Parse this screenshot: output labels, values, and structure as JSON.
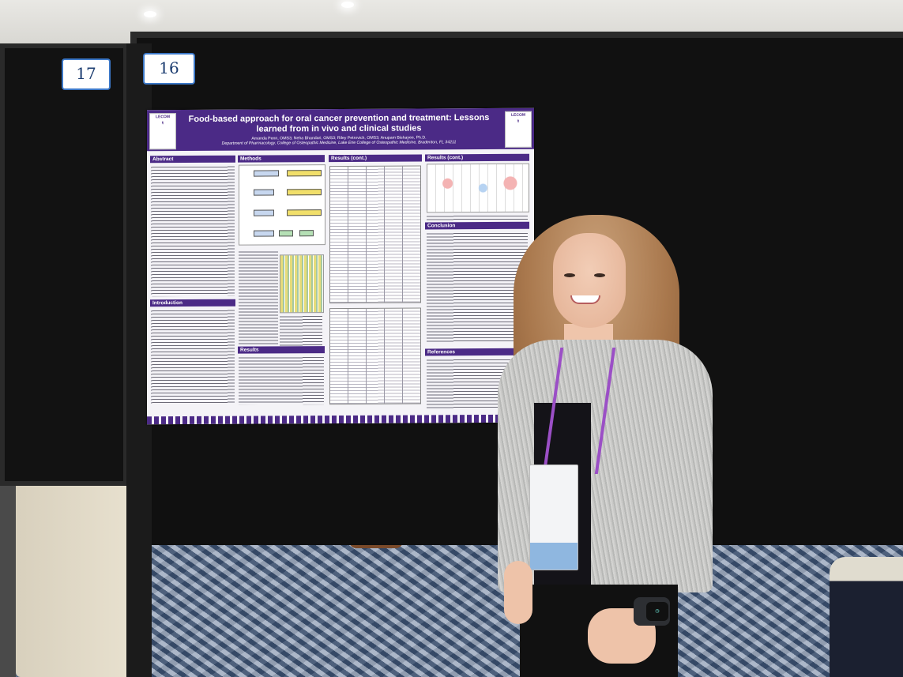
{
  "scene": {
    "description_tags": [
      "poster-session",
      "presenter",
      "conference-hall"
    ]
  },
  "booth_numbers": {
    "left": "17",
    "main": "16"
  },
  "poster": {
    "title": "Food-based approach for oral cancer prevention and treatment: Lessons learned from in vivo and clinical studies",
    "authors": "Amanda Penn, OMS3; Neha Bhandari, OMS3; Riley Petrovich, OMS3; Anupam Bishayee, Ph.D.",
    "affiliation": "Department of Pharmacology, College of Osteopathic Medicine, Lake Erie College of Osteopathic Medicine, Bradenton, FL 34211",
    "logo_text": "LECOM",
    "sections": {
      "abstract": "Abstract",
      "methods": "Methods",
      "results_cont_1": "Results (cont.)",
      "results_cont_2": "Results (cont.)",
      "introduction": "Introduction",
      "results": "Results",
      "conclusion": "Conclusion",
      "references": "References"
    }
  },
  "colors": {
    "poster_purple": "#4b2a86",
    "board": "#111111",
    "lanyard": "#9b4fc6",
    "badge_strip": "#8fb7e0"
  }
}
